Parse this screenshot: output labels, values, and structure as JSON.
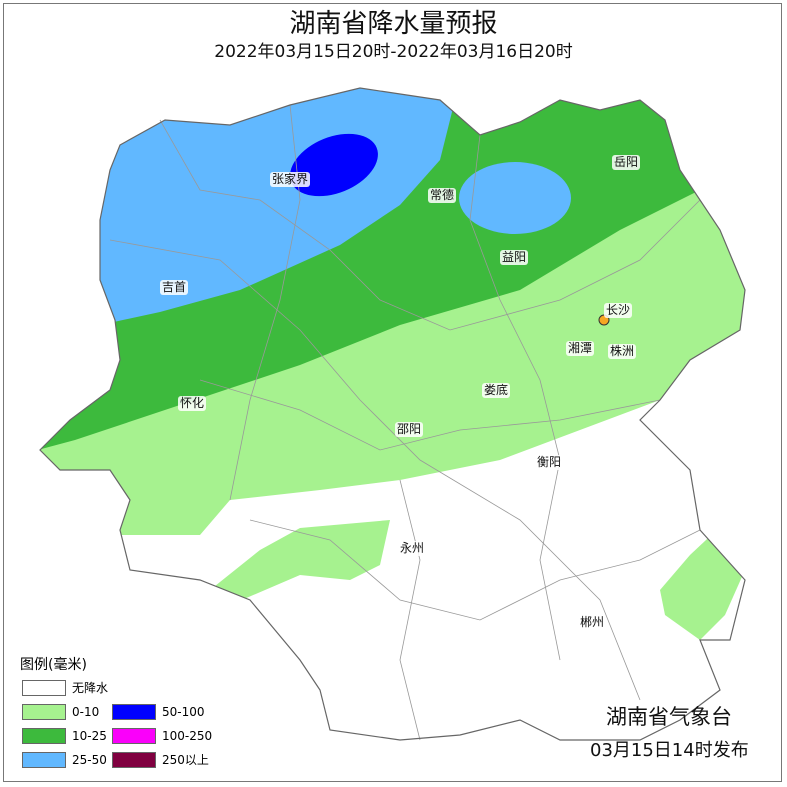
{
  "header": {
    "title": "湖南省降水量预报",
    "subtitle": "2022年03月15日20时-2022年03月16日20时"
  },
  "colors": {
    "none": "#ffffff",
    "c0_10": "#a6f28f",
    "c10_25": "#3dba3d",
    "c25_50": "#61b8ff",
    "c50_100": "#0000ff",
    "c100_250": "#fa00fa",
    "c250": "#800040"
  },
  "cities": [
    {
      "name": "张家界"
    },
    {
      "name": "常德"
    },
    {
      "name": "岳阳"
    },
    {
      "name": "益阳"
    },
    {
      "name": "吉首"
    },
    {
      "name": "长沙"
    },
    {
      "name": "湘潭"
    },
    {
      "name": "株洲"
    },
    {
      "name": "怀化"
    },
    {
      "name": "娄底"
    },
    {
      "name": "邵阳"
    },
    {
      "name": "衡阳"
    },
    {
      "name": "永州"
    },
    {
      "name": "郴州"
    }
  ],
  "legend": {
    "title": "图例(毫米)",
    "items": [
      {
        "label": "无降水",
        "color": "#ffffff"
      },
      {
        "label": "0-10",
        "color": "#a6f28f"
      },
      {
        "label": "10-25",
        "color": "#3dba3d"
      },
      {
        "label": "25-50",
        "color": "#61b8ff"
      },
      {
        "label": "50-100",
        "color": "#0000ff"
      },
      {
        "label": "100-250",
        "color": "#fa00fa"
      },
      {
        "label": "250以上",
        "color": "#800040"
      }
    ]
  },
  "footer": {
    "org": "湖南省气象台",
    "issued": "03月15日14时发布"
  }
}
